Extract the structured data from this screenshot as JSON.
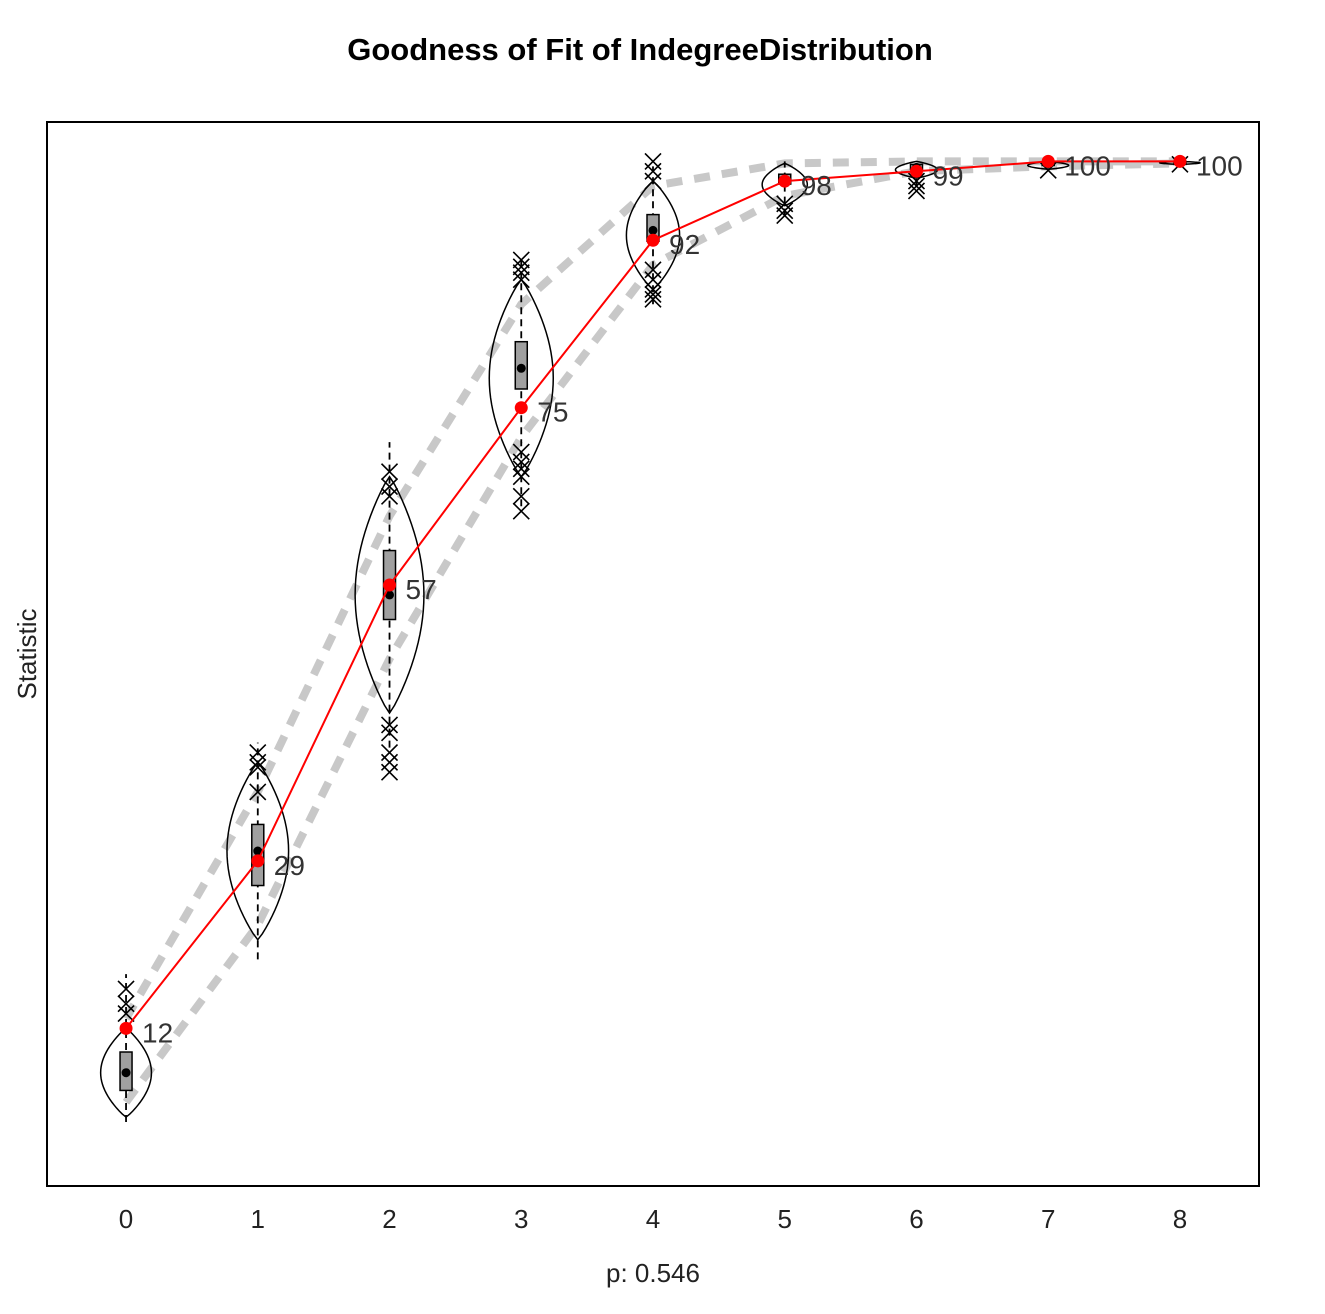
{
  "chart_data": {
    "type": "line",
    "title": "Goodness of Fit of IndegreeDistribution",
    "xlabel": "p: 0.546",
    "ylabel": "Statistic",
    "x": [
      0,
      1,
      2,
      3,
      4,
      5,
      6,
      7,
      8
    ],
    "xlim": [
      -0.6,
      8.6
    ],
    "ylim": [
      -4,
      104
    ],
    "observed": {
      "values": [
        12,
        29,
        57,
        75,
        92,
        98,
        99,
        100,
        100
      ],
      "labels": [
        "12",
        "29",
        "57",
        "75",
        "92",
        "98",
        "99",
        "100",
        "100"
      ],
      "color": "#ff0000"
    },
    "simulated": {
      "medians": [
        7.5,
        30,
        56,
        79,
        93,
        98,
        99.4,
        99.8,
        100
      ],
      "box_q1": [
        5.7,
        26.5,
        53.5,
        76.9,
        91.9,
        97.7,
        99.2,
        99.7,
        100
      ],
      "box_q3": [
        9.6,
        32.7,
        60.5,
        81.7,
        94.6,
        98.7,
        99.7,
        99.9,
        100
      ],
      "whisker_low": [
        2.5,
        19,
        40.5,
        65,
        85.5,
        94.5,
        97.5,
        99.3,
        99.8
      ],
      "whisker_high": [
        17.5,
        41,
        71.5,
        90.5,
        99.5,
        100,
        100,
        100,
        100
      ],
      "band_low": [
        4.5,
        22.5,
        49.5,
        72,
        89.5,
        96.5,
        99,
        99.5,
        99.8
      ],
      "band_high": [
        13,
        36,
        64,
        85.5,
        97.5,
        99.8,
        100,
        100,
        100
      ],
      "violin_low": [
        3,
        21,
        44,
        68,
        87,
        95.5,
        98.3,
        99.2,
        99.7
      ],
      "violin_high": [
        12,
        39,
        68,
        88,
        98,
        99.8,
        100,
        100,
        100
      ],
      "outliers": [
        [
          0,
          13.5
        ],
        [
          0,
          14.5
        ],
        [
          0,
          16
        ],
        [
          1,
          38.5
        ],
        [
          1,
          39
        ],
        [
          1,
          40
        ],
        [
          1,
          36
        ],
        [
          2,
          42
        ],
        [
          2,
          42.8
        ],
        [
          2,
          40
        ],
        [
          2,
          39
        ],
        [
          2,
          38
        ],
        [
          2,
          66
        ],
        [
          2,
          67
        ],
        [
          2,
          68.5
        ],
        [
          3,
          88
        ],
        [
          3,
          88.7
        ],
        [
          3,
          89.3
        ],
        [
          3,
          90
        ],
        [
          3,
          70.5
        ],
        [
          3,
          69.5
        ],
        [
          3,
          68.8
        ],
        [
          3,
          68
        ],
        [
          3,
          66
        ],
        [
          3,
          64.5
        ],
        [
          4,
          98
        ],
        [
          4,
          99
        ],
        [
          4,
          100
        ],
        [
          4,
          86
        ],
        [
          4,
          86.5
        ],
        [
          4,
          87
        ],
        [
          4,
          88
        ],
        [
          4,
          89
        ],
        [
          5,
          95
        ],
        [
          5,
          94.5
        ],
        [
          5,
          95.7
        ],
        [
          6,
          97
        ],
        [
          6,
          97.5
        ],
        [
          6,
          98
        ],
        [
          7,
          99.1
        ],
        [
          8,
          99.7
        ]
      ],
      "band_color": "#c8c8c8",
      "box_fill": "#a0a0a0"
    }
  }
}
